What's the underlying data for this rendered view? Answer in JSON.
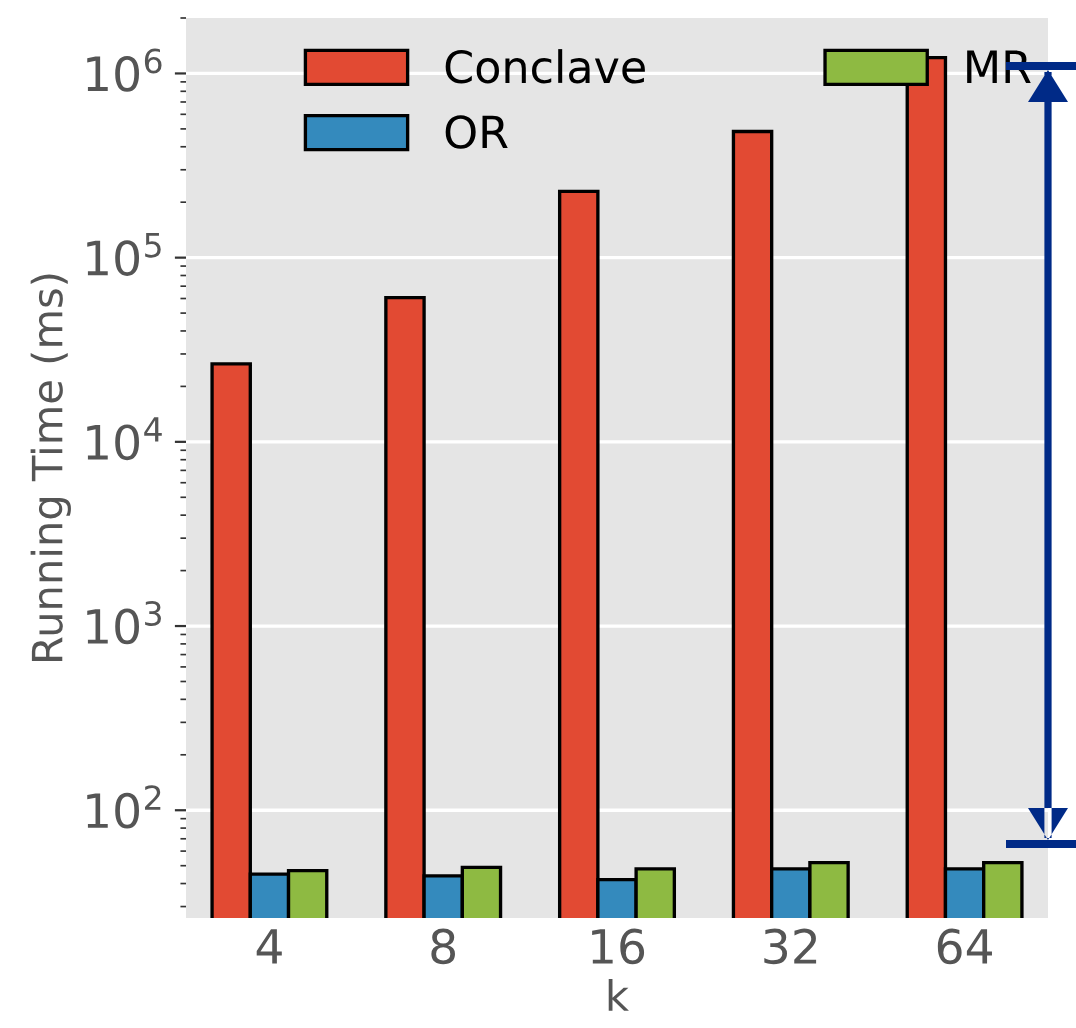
{
  "chart_data": {
    "type": "bar",
    "xlabel": "k",
    "ylabel": "Running Time (ms)",
    "categories": [
      "4",
      "8",
      "16",
      "32",
      "64"
    ],
    "series": [
      {
        "name": "Conclave",
        "color": "#e24a33",
        "values": [
          26500,
          60700,
          229000,
          484000,
          1220000
        ]
      },
      {
        "name": "OR",
        "color": "#348abd",
        "values": [
          45,
          44,
          42,
          48,
          48
        ]
      },
      {
        "name": "MR",
        "color": "#8eba42",
        "values": [
          47,
          49,
          48,
          52,
          52
        ]
      }
    ],
    "log": true,
    "ylim": [
      26,
      2000000
    ],
    "yticks": [
      {
        "value": 100,
        "label": "10$^{2}$"
      },
      {
        "value": 1000,
        "label": "10$^{3}$"
      },
      {
        "value": 10000,
        "label": "10$^{4}$"
      },
      {
        "value": 100000,
        "label": "10$^{5}$"
      },
      {
        "value": 1000000,
        "label": "10$^{6}$"
      }
    ],
    "grid": "y",
    "legend": "top"
  }
}
